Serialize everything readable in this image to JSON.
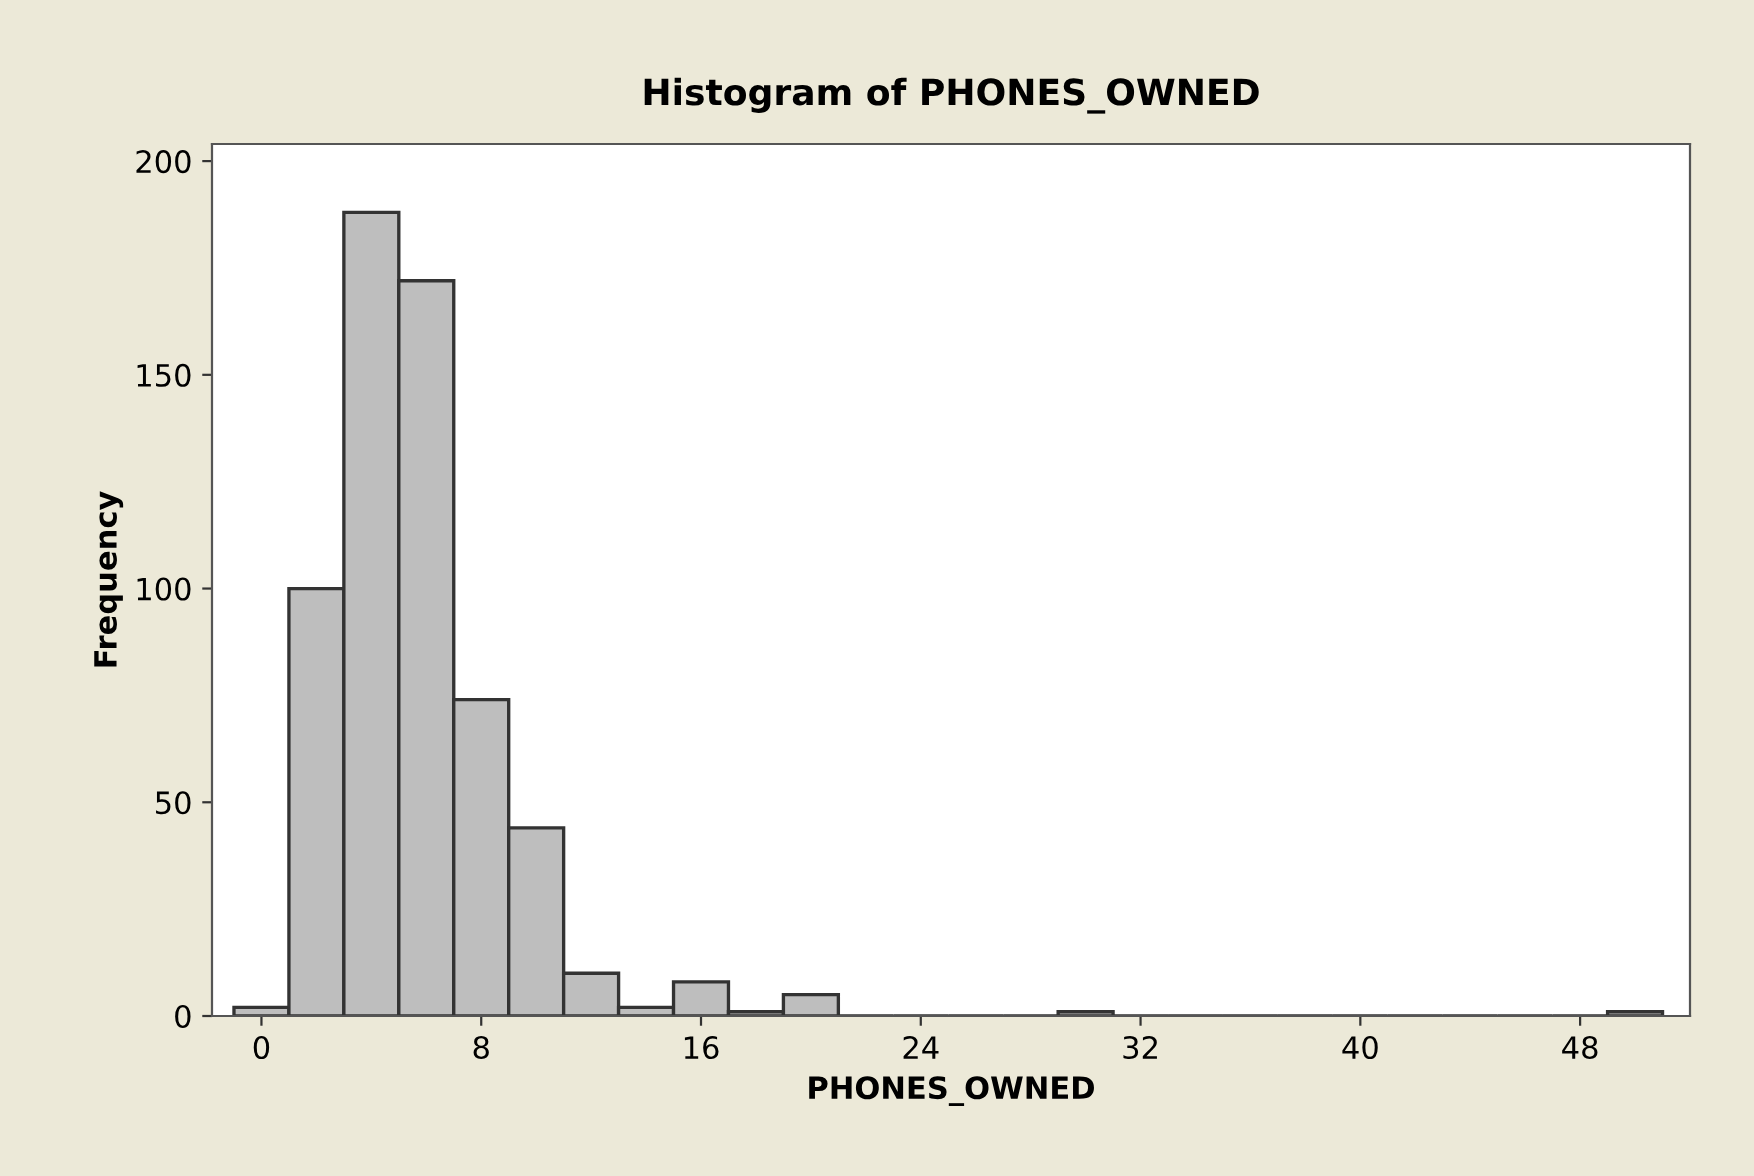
{
  "chart_data": {
    "type": "histogram",
    "title": "Histogram of PHONES_OWNED",
    "xlabel": "PHONES_OWNED",
    "ylabel": "Frequency",
    "bins": [
      -1,
      1,
      3,
      5,
      7,
      9,
      11,
      13,
      15,
      17,
      19,
      21,
      23,
      25,
      27,
      29,
      31,
      33,
      35,
      37,
      39,
      41,
      43,
      45,
      47,
      49,
      51
    ],
    "values": [
      2,
      100,
      188,
      172,
      74,
      44,
      10,
      2,
      8,
      1,
      5,
      0,
      0,
      0,
      0,
      1,
      0,
      0,
      0,
      0,
      0,
      0,
      0,
      0,
      0,
      1
    ],
    "color": "#bebebe",
    "xlim": [
      -1.8,
      52
    ],
    "xticks": [
      0,
      8,
      16,
      24,
      32,
      40,
      48
    ],
    "ylim": [
      0,
      204
    ],
    "yticks": [
      0,
      50,
      100,
      150,
      200
    ],
    "grid": false,
    "legend": false
  }
}
